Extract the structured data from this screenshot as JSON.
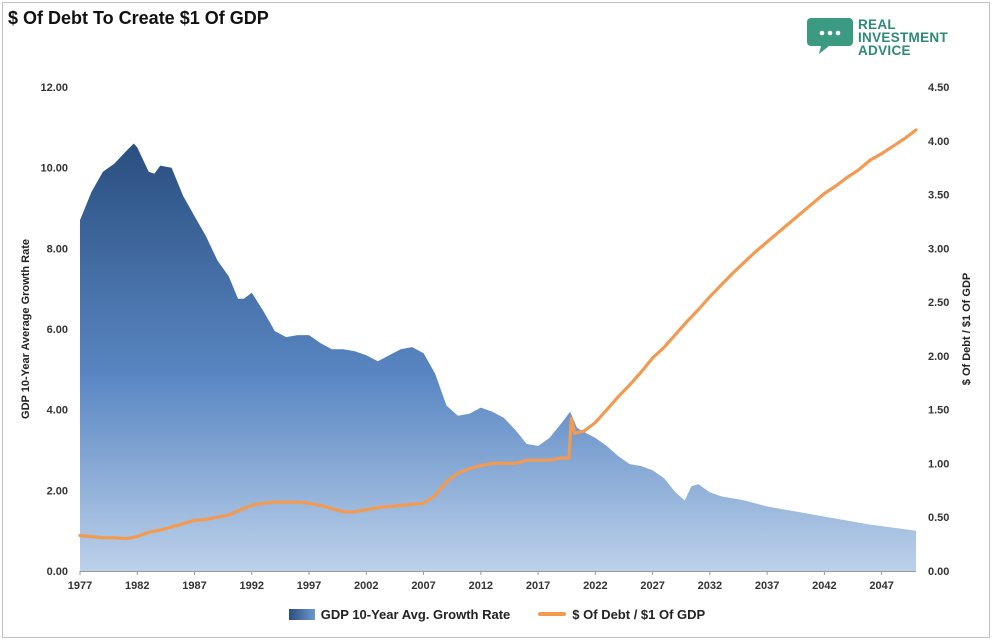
{
  "title": "$ Of Debt To Create $1 Of GDP",
  "logo": {
    "icon": "chat-bubble-icon",
    "lines": [
      "REAL",
      "INVESTMENT",
      "ADVICE"
    ]
  },
  "colors": {
    "area_top": "#2a4f80",
    "area_mid": "#5a87c3",
    "area_bottom": "#bcd1ea",
    "line": "#f39a51",
    "logo": "#3a9a82"
  },
  "chart_data": {
    "type": "area",
    "title": "$ Of Debt To Create $1 Of GDP",
    "x_ticks": [
      "1977",
      "1982",
      "1987",
      "1992",
      "1997",
      "2002",
      "2007",
      "2012",
      "2017",
      "2022",
      "2027",
      "2032",
      "2037",
      "2042",
      "2047"
    ],
    "xlim": [
      1977,
      2050
    ],
    "y_left": {
      "label": "GDP 10-Year Average Growth Rate",
      "ticks": [
        "0.00",
        "2.00",
        "4.00",
        "6.00",
        "8.00",
        "10.00",
        "12.00"
      ],
      "lim": [
        0,
        12
      ]
    },
    "y_right": {
      "label": "$ Of Debt / $1 Of GDP",
      "ticks": [
        "0.00",
        "0.50",
        "1.00",
        "1.50",
        "2.00",
        "2.50",
        "3.00",
        "3.50",
        "4.00",
        "4.50"
      ],
      "lim": [
        0,
        4.5
      ]
    },
    "legend_position": "bottom",
    "grid": false,
    "series": [
      {
        "name": "GDP 10-Year Avg. Growth Rate",
        "axis": "left",
        "kind": "area",
        "x": [
          1977,
          1978,
          1979,
          1980,
          1981,
          1981.7,
          1982,
          1983,
          1983.5,
          1984,
          1985,
          1986,
          1987,
          1988,
          1989,
          1990,
          1990.8,
          1991.3,
          1992,
          1993,
          1993.5,
          1994,
          1995,
          1996,
          1997,
          1998,
          1999,
          2000,
          2001,
          2002,
          2003,
          2004,
          2005,
          2006,
          2007,
          2008,
          2009,
          2010,
          2011,
          2012,
          2013,
          2014,
          2015,
          2016,
          2017,
          2018,
          2019,
          2019.8,
          2020.4,
          2021,
          2022,
          2023,
          2024,
          2025,
          2026,
          2027,
          2028,
          2029,
          2029.8,
          2030.4,
          2031,
          2032,
          2033,
          2035,
          2037,
          2040,
          2043,
          2046,
          2050
        ],
        "values": [
          8.7,
          9.4,
          9.9,
          10.1,
          10.4,
          10.6,
          10.5,
          9.9,
          9.85,
          10.05,
          10.0,
          9.3,
          8.8,
          8.3,
          7.7,
          7.3,
          6.75,
          6.75,
          6.9,
          6.45,
          6.2,
          5.95,
          5.8,
          5.85,
          5.85,
          5.65,
          5.5,
          5.5,
          5.45,
          5.35,
          5.2,
          5.35,
          5.5,
          5.55,
          5.4,
          4.9,
          4.1,
          3.85,
          3.9,
          4.05,
          3.95,
          3.8,
          3.5,
          3.15,
          3.1,
          3.3,
          3.65,
          3.95,
          3.55,
          3.45,
          3.3,
          3.1,
          2.85,
          2.65,
          2.6,
          2.5,
          2.3,
          1.95,
          1.75,
          2.1,
          2.15,
          1.95,
          1.85,
          1.75,
          1.6,
          1.45,
          1.3,
          1.15,
          1.0
        ]
      },
      {
        "name": "$ Of Debt / $1 Of GDP",
        "axis": "right",
        "kind": "line",
        "x": [
          1977,
          1978,
          1979,
          1980,
          1981,
          1982,
          1983,
          1984,
          1985,
          1986,
          1987,
          1988,
          1989,
          1990,
          1991,
          1992,
          1993,
          1994,
          1995,
          1996,
          1997,
          1998,
          1999,
          2000,
          2001,
          2002,
          2003,
          2004,
          2005,
          2006,
          2007,
          2008,
          2009,
          2010,
          2011,
          2012,
          2013,
          2014,
          2015,
          2016,
          2017,
          2018,
          2019,
          2019.7,
          2019.9,
          2020.2,
          2021,
          2022,
          2023,
          2024,
          2025,
          2026,
          2027,
          2028,
          2029,
          2030,
          2031,
          2032,
          2033,
          2034,
          2035,
          2036,
          2037,
          2038,
          2039,
          2040,
          2041,
          2042,
          2043,
          2044,
          2045,
          2046,
          2047,
          2048,
          2049,
          2050
        ],
        "values": [
          0.33,
          0.32,
          0.31,
          0.31,
          0.3,
          0.32,
          0.36,
          0.38,
          0.41,
          0.44,
          0.47,
          0.48,
          0.5,
          0.52,
          0.57,
          0.61,
          0.63,
          0.64,
          0.64,
          0.64,
          0.63,
          0.61,
          0.58,
          0.55,
          0.55,
          0.57,
          0.59,
          0.6,
          0.61,
          0.62,
          0.63,
          0.7,
          0.83,
          0.91,
          0.95,
          0.98,
          1.0,
          1.0,
          1.0,
          1.03,
          1.03,
          1.03,
          1.05,
          1.05,
          1.42,
          1.28,
          1.3,
          1.38,
          1.5,
          1.62,
          1.73,
          1.85,
          1.98,
          2.08,
          2.2,
          2.32,
          2.43,
          2.55,
          2.66,
          2.77,
          2.87,
          2.97,
          3.06,
          3.15,
          3.24,
          3.33,
          3.42,
          3.51,
          3.58,
          3.66,
          3.73,
          3.82,
          3.88,
          3.95,
          4.02,
          4.1
        ]
      }
    ]
  }
}
